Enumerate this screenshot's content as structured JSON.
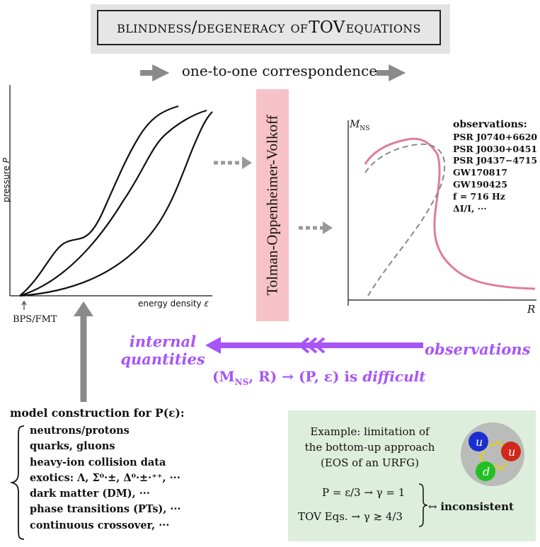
{
  "title": {
    "part1": "blindness/degeneracy of ",
    "part2": "TOV",
    "part3": " equations"
  },
  "correspondence": "one-to-one correspondence",
  "eos_plot": {
    "ylabel": "pressure",
    "ylabel_symbol": "P",
    "xlabel": "energy density",
    "xlabel_symbol": "ε",
    "bps_label": "BPS/FMT"
  },
  "tov_label": "Tolman-Oppenheimer-Volkoff",
  "mr_plot": {
    "ylabel": "M",
    "ylabel_sub": "NS",
    "xlabel": "R"
  },
  "observations": {
    "header": "observations:",
    "items": [
      "PSR J0740+6620",
      "PSR J0030+0451",
      "PSR J0437−4715",
      "GW170817",
      "GW190425",
      "f = 716 Hz",
      "ΔI/I, ···"
    ]
  },
  "internal_quantities": {
    "line1": "internal",
    "line2": "quantities"
  },
  "observations_label": "observations",
  "inverse": {
    "math": "(M",
    "sub": "NS",
    "math2": ", R) → (P, ε) is ",
    "word": "difficult"
  },
  "model": {
    "title": "model construction for P(ε):",
    "items": [
      "neutrons/protons",
      "quarks, gluons",
      "heavy-ion collision data",
      "exotics: Λ, Σ⁰·±, Δ⁰·±·⁺⁺, ···",
      "dark matter (DM), ···",
      "phase transitions (PTs), ···",
      "continuous crossover, ···"
    ]
  },
  "example": {
    "line1": "Example: limitation of",
    "line2": "the bottom-up approach",
    "line3": "(EOS of an URFG)",
    "eq1": "P = ε/3 → γ = 1",
    "eq2": "TOV Eqs. → γ ≳ 4/3",
    "result_arrow": "↔",
    "result": "inconsistent"
  },
  "quark_labels": [
    "u",
    "u",
    "d"
  ],
  "colors": {
    "purple": "#a855f7",
    "pink_curve": "#e07aa0",
    "gray_arrow": "#8a8a8a",
    "tov_band": "#f7c2c8",
    "example_bg": "#ddeedd"
  }
}
